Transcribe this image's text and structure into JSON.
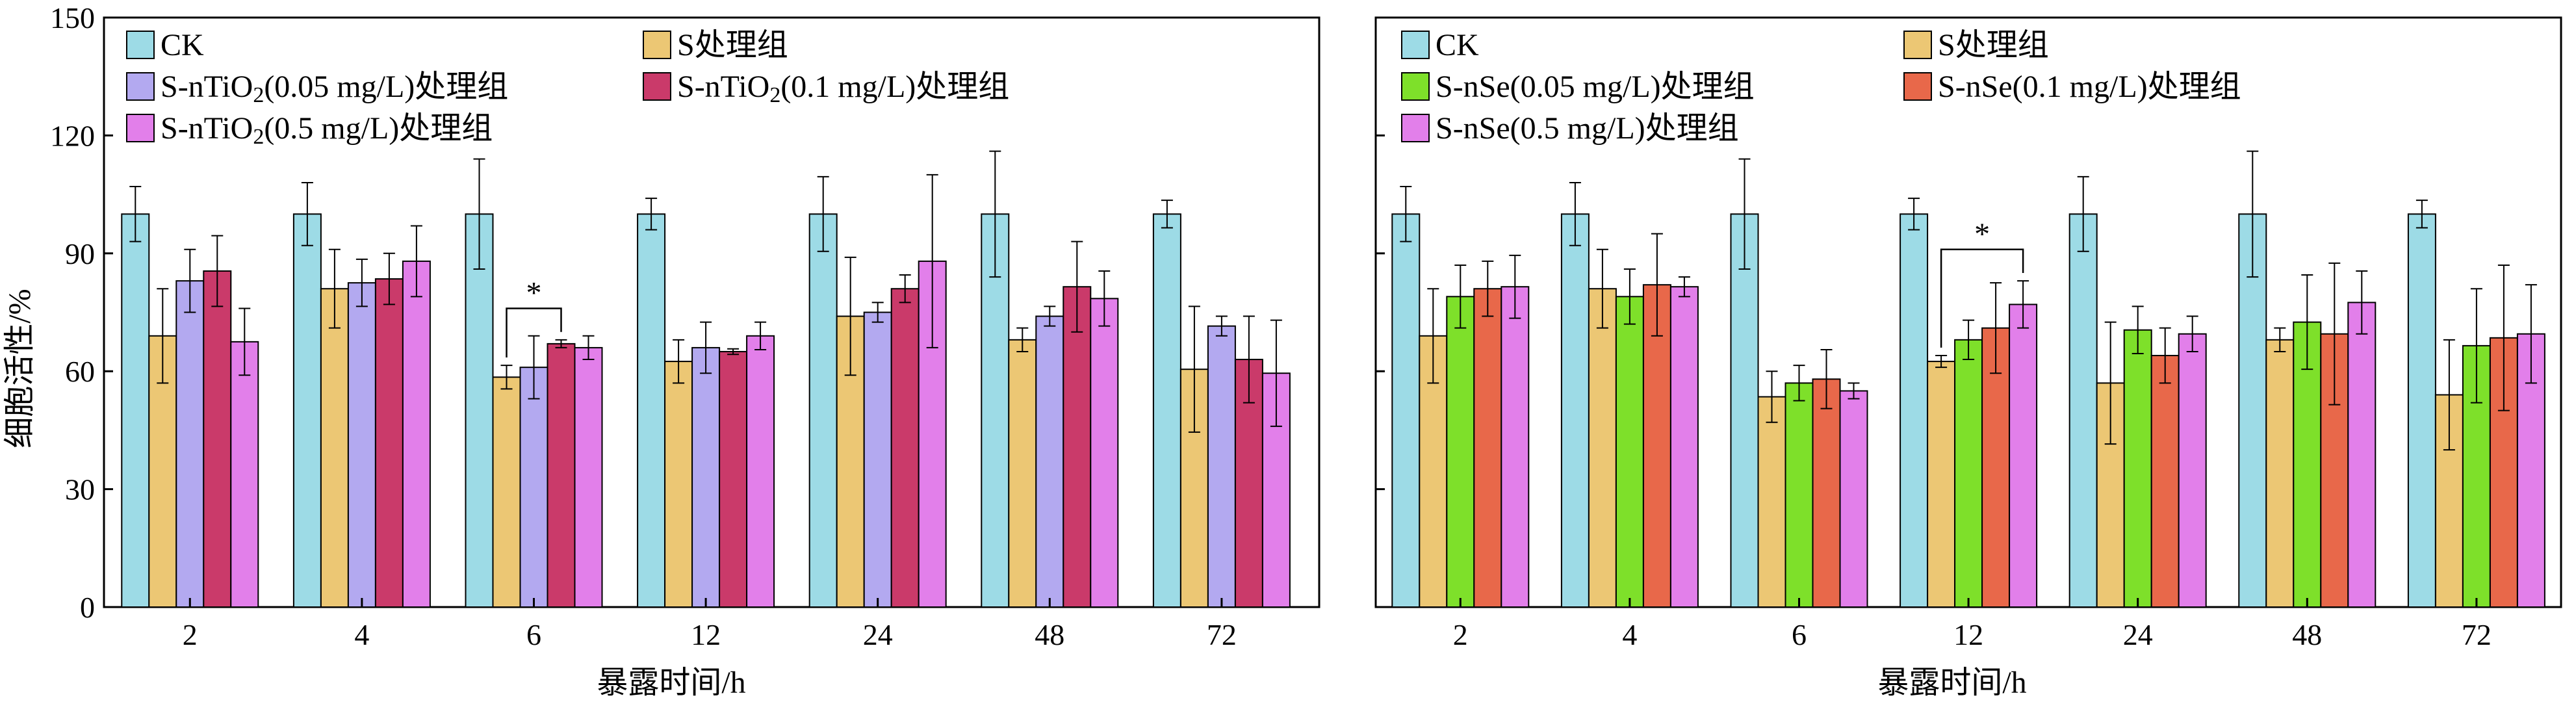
{
  "ylabel": "细胞活性/%",
  "xlabel": "暴露时间/h",
  "chart_data": [
    {
      "type": "bar",
      "categories": [
        "2",
        "4",
        "6",
        "12",
        "24",
        "48",
        "72"
      ],
      "ylim": [
        0,
        150
      ],
      "yticks": [
        0,
        30,
        60,
        90,
        120,
        150
      ],
      "xlabel": "暴露时间/h",
      "ylabel": "细胞活性/%",
      "legend_position": "top-left, 3 rows × 2 columns",
      "series": [
        {
          "name": "CK",
          "color": "#9ddbe6",
          "values": [
            100,
            100,
            100,
            100,
            100,
            100,
            100
          ],
          "errors": [
            7,
            8,
            14,
            4,
            9.5,
            16,
            3.5
          ]
        },
        {
          "name": "S处理组",
          "color": "#ecc774",
          "values": [
            69,
            81,
            58.5,
            62.5,
            74,
            68,
            60.5
          ],
          "errors": [
            12,
            10,
            3,
            5.5,
            15,
            3,
            16
          ]
        },
        {
          "name": "S-nTiO₂(0.05 mg/L)处理组",
          "color": "#b3a9f0",
          "values": [
            83,
            82.5,
            61,
            66,
            75,
            74,
            71.5
          ],
          "errors": [
            8,
            6,
            8,
            6.5,
            2.5,
            2.5,
            2.5
          ]
        },
        {
          "name": "S-nTiO₂(0.1 mg/L)处理组",
          "color": "#ca3a6a",
          "values": [
            85.5,
            83.5,
            67,
            65,
            81,
            81.5,
            63
          ],
          "errors": [
            9,
            6.5,
            1,
            0.7,
            3.5,
            11.5,
            11
          ]
        },
        {
          "name": "S-nTiO₂(0.5 mg/L)处理组",
          "color": "#e27fea",
          "values": [
            67.5,
            88,
            66,
            69,
            88,
            78.5,
            59.5
          ],
          "errors": [
            8.5,
            9,
            3,
            3.5,
            22,
            7,
            13.5
          ]
        }
      ],
      "annotations": [
        {
          "text": "*",
          "category": "6",
          "between": [
            "S处理组",
            "S-nTiO₂(0.1 mg/L)处理组"
          ]
        }
      ]
    },
    {
      "type": "bar",
      "categories": [
        "2",
        "4",
        "6",
        "12",
        "24",
        "48",
        "72"
      ],
      "ylim": [
        0,
        150
      ],
      "yticks": [
        0,
        30,
        60,
        90,
        120,
        150
      ],
      "xlabel": "暴露时间/h",
      "ylabel": "",
      "legend_position": "top-left, 3 rows × 2 columns",
      "series": [
        {
          "name": "CK",
          "color": "#9ddbe6",
          "values": [
            100,
            100,
            100,
            100,
            100,
            100,
            100
          ],
          "errors": [
            7,
            8,
            14,
            4,
            9.5,
            16,
            3.5
          ]
        },
        {
          "name": "S处理组",
          "color": "#ecc774",
          "values": [
            69,
            81,
            53.5,
            62.5,
            57,
            68,
            54
          ],
          "errors": [
            12,
            10,
            6.5,
            1.5,
            15.5,
            3,
            14
          ]
        },
        {
          "name": "S-nSe(0.05 mg/L)处理组",
          "color": "#7ee02a",
          "values": [
            79,
            79,
            57,
            68,
            70.5,
            72.5,
            66.5
          ],
          "errors": [
            8,
            7,
            4.5,
            5,
            6,
            12,
            14.5
          ]
        },
        {
          "name": "S-nSe(0.1 mg/L)处理组",
          "color": "#e8684a",
          "values": [
            81,
            82,
            58,
            71,
            64,
            69.5,
            68.5
          ],
          "errors": [
            7,
            13,
            7.5,
            11.5,
            7,
            18,
            18.5
          ]
        },
        {
          "name": "S-nSe(0.5 mg/L)处理组",
          "color": "#e27fea",
          "values": [
            81.5,
            81.5,
            55,
            77,
            69.5,
            77.5,
            69.5
          ],
          "errors": [
            8,
            2.5,
            2,
            6,
            4.5,
            8,
            12.5
          ]
        }
      ],
      "annotations": [
        {
          "text": "*",
          "category": "12",
          "between": [
            "S处理组",
            "S-nSe(0.5 mg/L)处理组"
          ]
        }
      ]
    }
  ]
}
